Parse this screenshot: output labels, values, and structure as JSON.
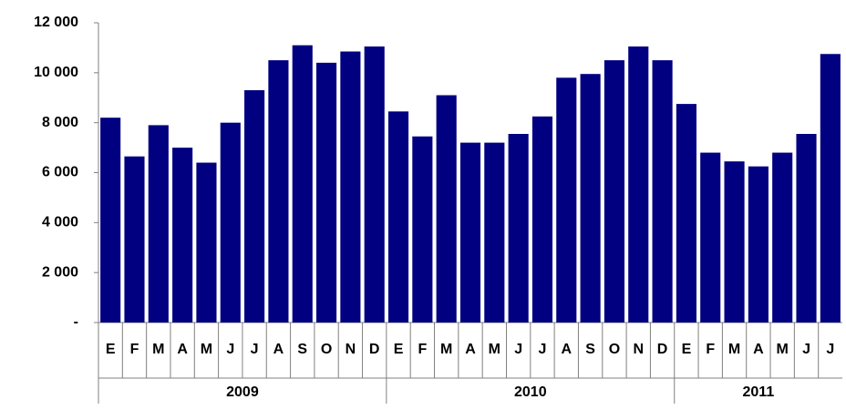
{
  "chart_data": {
    "type": "bar",
    "color": "#000080",
    "ylim": [
      0,
      12000
    ],
    "yticks": [
      {
        "value": 0,
        "label": "-"
      },
      {
        "value": 2000,
        "label": "2 000"
      },
      {
        "value": 4000,
        "label": "4 000"
      },
      {
        "value": 6000,
        "label": "6 000"
      },
      {
        "value": 8000,
        "label": "8 000"
      },
      {
        "value": 10000,
        "label": "10 000"
      },
      {
        "value": 12000,
        "label": "12 000"
      }
    ],
    "groups": [
      {
        "name": "2009",
        "categories": [
          "E",
          "F",
          "M",
          "A",
          "M",
          "J",
          "J",
          "A",
          "S",
          "O",
          "N",
          "D"
        ],
        "values": [
          8200,
          6650,
          7900,
          7000,
          6400,
          8000,
          9300,
          10500,
          11100,
          10400,
          10850,
          11050
        ]
      },
      {
        "name": "2010",
        "categories": [
          "E",
          "F",
          "M",
          "A",
          "M",
          "J",
          "J",
          "A",
          "S",
          "O",
          "N",
          "D"
        ],
        "values": [
          8450,
          7450,
          9100,
          7200,
          7200,
          7550,
          8250,
          9800,
          9950,
          10500,
          11050,
          10500
        ]
      },
      {
        "name": "2011",
        "categories": [
          "E",
          "F",
          "M",
          "A",
          "M",
          "J",
          "J"
        ],
        "values": [
          8750,
          6800,
          6450,
          6250,
          6800,
          7550,
          10750
        ]
      }
    ]
  }
}
